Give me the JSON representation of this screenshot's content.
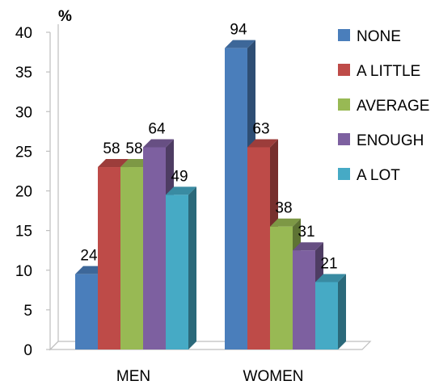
{
  "chart_data": {
    "type": "bar",
    "unit_label": "%",
    "categories": [
      "MEN",
      "WOMEN"
    ],
    "ylim": [
      0,
      40
    ],
    "yticks": [
      "0",
      "5",
      "10",
      "15",
      "20",
      "25",
      "30",
      "35",
      "40"
    ],
    "grid": false,
    "legend_position": "right",
    "series": [
      {
        "name": "NONE",
        "color": "#4a7ebb",
        "values": [
          9.5,
          38
        ],
        "labels": [
          "24",
          "94"
        ]
      },
      {
        "name": "A LITTLE",
        "color": "#be4b48",
        "values": [
          23,
          25.5
        ],
        "labels": [
          "58",
          "63"
        ]
      },
      {
        "name": "AVERAGE",
        "color": "#98b954",
        "values": [
          23,
          15.5
        ],
        "labels": [
          "58",
          "38"
        ]
      },
      {
        "name": "ENOUGH",
        "color": "#7d60a0",
        "values": [
          25.5,
          12.5
        ],
        "labels": [
          "64",
          "31"
        ]
      },
      {
        "name": "A LOT",
        "color": "#46aac5",
        "values": [
          19.5,
          8.5
        ],
        "labels": [
          "49",
          "21"
        ]
      }
    ]
  }
}
